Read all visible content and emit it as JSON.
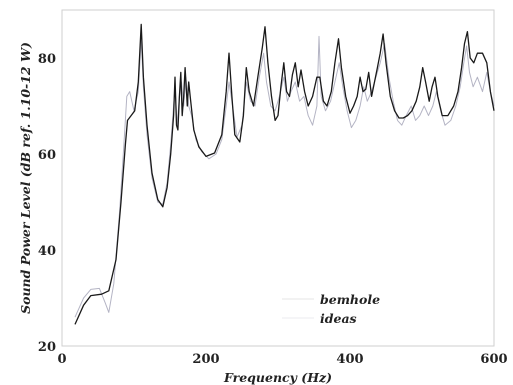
{
  "chart_data": {
    "type": "line",
    "title": "",
    "xlabel": "Frequency (Hz)",
    "ylabel": "Sound Power Level (dB ref. 1.10-12 W)",
    "xlim": [
      0,
      600
    ],
    "ylim": [
      20,
      90
    ],
    "xticks": [
      0,
      200,
      400,
      600
    ],
    "yticks": [
      20,
      40,
      60,
      80
    ],
    "xtick_labels": [
      "0",
      "200",
      "400",
      "600"
    ],
    "ytick_labels": [
      "20",
      "40",
      "60",
      "80"
    ],
    "grid": false,
    "legend_position": "lower-center",
    "series": [
      {
        "name": "bemhole",
        "color": "#1a1a1a",
        "points": [
          [
            18,
            24.5
          ],
          [
            30,
            28.5
          ],
          [
            40,
            30.5
          ],
          [
            55,
            30.8
          ],
          [
            65,
            31.5
          ],
          [
            75,
            38
          ],
          [
            82,
            50
          ],
          [
            88,
            62
          ],
          [
            91,
            67
          ],
          [
            96,
            68
          ],
          [
            101,
            69
          ],
          [
            106,
            75
          ],
          [
            110,
            87
          ],
          [
            113,
            76
          ],
          [
            118,
            66
          ],
          [
            125,
            56
          ],
          [
            133,
            50.5
          ],
          [
            140,
            49
          ],
          [
            146,
            53
          ],
          [
            151,
            60
          ],
          [
            155,
            68
          ],
          [
            157,
            76
          ],
          [
            159,
            66
          ],
          [
            161,
            65
          ],
          [
            163,
            72
          ],
          [
            165,
            77
          ],
          [
            167,
            68
          ],
          [
            169,
            72
          ],
          [
            171,
            78
          ],
          [
            174,
            70
          ],
          [
            176,
            75
          ],
          [
            178,
            72
          ],
          [
            183,
            65
          ],
          [
            190,
            61.5
          ],
          [
            200,
            59.5
          ],
          [
            212,
            60.2
          ],
          [
            222,
            64
          ],
          [
            228,
            73
          ],
          [
            232,
            81
          ],
          [
            236,
            72
          ],
          [
            240,
            64
          ],
          [
            247,
            62.5
          ],
          [
            252,
            68
          ],
          [
            256,
            78
          ],
          [
            260,
            73
          ],
          [
            266,
            70
          ],
          [
            272,
            76
          ],
          [
            278,
            82
          ],
          [
            282,
            86.5
          ],
          [
            286,
            79
          ],
          [
            291,
            72
          ],
          [
            296,
            67
          ],
          [
            300,
            68
          ],
          [
            304,
            74
          ],
          [
            308,
            79
          ],
          [
            312,
            73
          ],
          [
            316,
            72
          ],
          [
            320,
            76.5
          ],
          [
            324,
            79
          ],
          [
            328,
            74
          ],
          [
            332,
            77.5
          ],
          [
            337,
            73
          ],
          [
            342,
            70
          ],
          [
            348,
            72
          ],
          [
            354,
            76
          ],
          [
            358,
            76
          ],
          [
            363,
            71
          ],
          [
            368,
            70
          ],
          [
            374,
            73
          ],
          [
            379,
            79
          ],
          [
            384,
            84
          ],
          [
            388,
            78
          ],
          [
            394,
            72
          ],
          [
            400,
            68.5
          ],
          [
            405,
            70
          ],
          [
            410,
            72
          ],
          [
            414,
            76
          ],
          [
            418,
            73
          ],
          [
            422,
            73.5
          ],
          [
            426,
            77
          ],
          [
            430,
            72
          ],
          [
            434,
            75
          ],
          [
            438,
            78
          ],
          [
            442,
            81
          ],
          [
            446,
            85
          ],
          [
            450,
            79
          ],
          [
            456,
            72
          ],
          [
            462,
            69
          ],
          [
            468,
            67.5
          ],
          [
            474,
            67.5
          ],
          [
            480,
            68
          ],
          [
            486,
            69
          ],
          [
            492,
            71
          ],
          [
            497,
            74
          ],
          [
            501,
            78
          ],
          [
            505,
            75
          ],
          [
            510,
            71
          ],
          [
            514,
            74
          ],
          [
            518,
            76
          ],
          [
            522,
            72
          ],
          [
            528,
            68
          ],
          [
            536,
            68
          ],
          [
            544,
            70
          ],
          [
            550,
            73
          ],
          [
            555,
            78
          ],
          [
            559,
            83
          ],
          [
            563,
            85.5
          ],
          [
            567,
            80
          ],
          [
            572,
            79
          ],
          [
            577,
            81
          ],
          [
            584,
            81
          ],
          [
            590,
            79
          ],
          [
            595,
            73
          ],
          [
            600,
            69
          ]
        ]
      },
      {
        "name": "ideas",
        "color": "#b4b4c4",
        "points": [
          [
            18,
            26
          ],
          [
            30,
            30
          ],
          [
            40,
            31.8
          ],
          [
            52,
            32
          ],
          [
            60,
            29
          ],
          [
            65,
            27
          ],
          [
            72,
            33
          ],
          [
            80,
            48
          ],
          [
            86,
            62
          ],
          [
            90,
            72
          ],
          [
            94,
            73
          ],
          [
            100,
            69
          ],
          [
            106,
            73
          ],
          [
            110,
            84
          ],
          [
            113,
            74
          ],
          [
            118,
            64
          ],
          [
            125,
            55
          ],
          [
            133,
            50
          ],
          [
            140,
            49.5
          ],
          [
            146,
            54
          ],
          [
            151,
            62
          ],
          [
            155,
            70
          ],
          [
            157,
            74
          ],
          [
            160,
            66
          ],
          [
            163,
            72
          ],
          [
            166,
            75
          ],
          [
            169,
            70
          ],
          [
            172,
            76
          ],
          [
            176,
            70
          ],
          [
            180,
            68
          ],
          [
            186,
            63
          ],
          [
            194,
            60.5
          ],
          [
            204,
            59
          ],
          [
            214,
            60
          ],
          [
            222,
            63
          ],
          [
            228,
            70
          ],
          [
            232,
            75
          ],
          [
            237,
            70
          ],
          [
            243,
            63.5
          ],
          [
            250,
            66
          ],
          [
            256,
            75
          ],
          [
            262,
            71
          ],
          [
            268,
            70
          ],
          [
            274,
            76
          ],
          [
            280,
            81
          ],
          [
            284,
            75
          ],
          [
            290,
            70
          ],
          [
            296,
            69
          ],
          [
            302,
            72
          ],
          [
            308,
            76
          ],
          [
            313,
            71
          ],
          [
            318,
            73
          ],
          [
            324,
            75
          ],
          [
            330,
            71
          ],
          [
            336,
            72
          ],
          [
            342,
            68
          ],
          [
            348,
            66
          ],
          [
            354,
            70
          ],
          [
            357,
            84.5
          ],
          [
            360,
            72
          ],
          [
            366,
            69
          ],
          [
            373,
            71
          ],
          [
            379,
            75
          ],
          [
            385,
            79
          ],
          [
            390,
            74
          ],
          [
            396,
            69
          ],
          [
            402,
            65.5
          ],
          [
            408,
            67
          ],
          [
            414,
            70
          ],
          [
            419,
            74
          ],
          [
            424,
            71
          ],
          [
            430,
            73
          ],
          [
            436,
            76
          ],
          [
            442,
            79
          ],
          [
            448,
            83
          ],
          [
            454,
            76
          ],
          [
            460,
            71
          ],
          [
            466,
            67
          ],
          [
            472,
            66
          ],
          [
            478,
            68
          ],
          [
            485,
            70
          ],
          [
            491,
            67
          ],
          [
            497,
            68
          ],
          [
            503,
            70
          ],
          [
            509,
            68
          ],
          [
            515,
            70
          ],
          [
            520,
            73
          ],
          [
            526,
            69
          ],
          [
            532,
            66
          ],
          [
            540,
            67
          ],
          [
            547,
            70
          ],
          [
            553,
            74
          ],
          [
            558,
            79
          ],
          [
            562,
            82.5
          ],
          [
            566,
            77
          ],
          [
            571,
            74
          ],
          [
            577,
            76
          ],
          [
            584,
            73
          ],
          [
            590,
            77
          ],
          [
            595,
            73
          ],
          [
            600,
            70
          ]
        ]
      }
    ]
  }
}
